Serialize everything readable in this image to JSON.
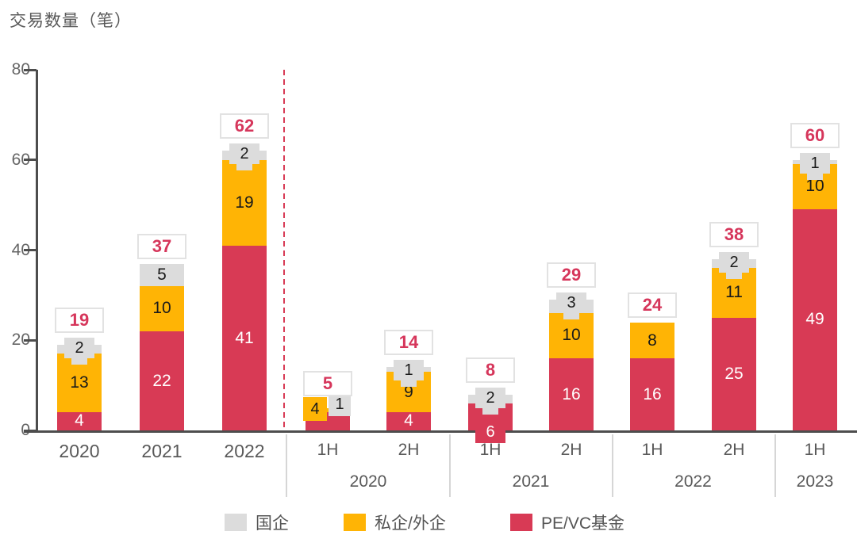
{
  "title": "交易数量（笔）",
  "colors": {
    "soe": "#dcdcdc",
    "private": "#ffb405",
    "pevc": "#d83a55",
    "axis": "#4d4d4d",
    "text_gray": "#595959",
    "total_text": "#d6365b",
    "total_border": "#e2e2e2",
    "dashed_line": "#d83a55"
  },
  "legend": [
    {
      "key": "soe",
      "label": "国企"
    },
    {
      "key": "private",
      "label": "私企/外企"
    },
    {
      "key": "pevc",
      "label": "PE/VC基金"
    }
  ],
  "chart_data": {
    "type": "bar",
    "stacked": true,
    "title": "交易数量（笔）",
    "ylabel": "交易数量（笔）",
    "ylim": [
      0,
      80
    ],
    "y_ticks": [
      0,
      20,
      40,
      60,
      80
    ],
    "series_names": {
      "soe": "国企",
      "private": "私企/外企",
      "pevc": "PE/VC基金"
    },
    "groups": [
      {
        "label": "",
        "bars": [
          {
            "label": "2020",
            "total": 19,
            "segments": [
              {
                "series": "pevc",
                "value": 4,
                "label": "4",
                "placement": "inside"
              },
              {
                "series": "private",
                "value": 13,
                "label": "13",
                "placement": "inside"
              },
              {
                "series": "soe",
                "value": 2,
                "label": "2",
                "placement": "callout-top"
              }
            ]
          },
          {
            "label": "2021",
            "total": 37,
            "segments": [
              {
                "series": "pevc",
                "value": 22,
                "label": "22",
                "placement": "inside"
              },
              {
                "series": "private",
                "value": 10,
                "label": "10",
                "placement": "inside"
              },
              {
                "series": "soe",
                "value": 5,
                "label": "5",
                "placement": "inside"
              }
            ]
          },
          {
            "label": "2022",
            "total": 62,
            "segments": [
              {
                "series": "pevc",
                "value": 41,
                "label": "41",
                "placement": "inside"
              },
              {
                "series": "private",
                "value": 19,
                "label": "19",
                "placement": "inside"
              },
              {
                "series": "soe",
                "value": 2,
                "label": "2",
                "placement": "callout-top"
              }
            ]
          }
        ]
      },
      {
        "label": "2020",
        "bars": [
          {
            "label": "1H",
            "total": 5,
            "segments": [
              {
                "series": "pevc",
                "value": 4,
                "label": "4",
                "placement": "callout-left",
                "box": "private"
              },
              {
                "series": "private",
                "value": 1,
                "label": "1",
                "placement": "callout-right",
                "box": "soe"
              }
            ]
          },
          {
            "label": "2H",
            "total": 14,
            "segments": [
              {
                "series": "pevc",
                "value": 4,
                "label": "4",
                "placement": "inside"
              },
              {
                "series": "private",
                "value": 9,
                "label": "9",
                "placement": "inside"
              },
              {
                "series": "soe",
                "value": 1,
                "label": "1",
                "placement": "callout-top"
              }
            ]
          }
        ]
      },
      {
        "label": "2021",
        "bars": [
          {
            "label": "1H",
            "total": 8,
            "segments": [
              {
                "series": "pevc",
                "value": 6,
                "label": "6",
                "placement": "callout-bottom"
              },
              {
                "series": "soe",
                "value": 2,
                "label": "2",
                "placement": "callout-top"
              }
            ]
          },
          {
            "label": "2H",
            "total": 29,
            "segments": [
              {
                "series": "pevc",
                "value": 16,
                "label": "16",
                "placement": "inside"
              },
              {
                "series": "private",
                "value": 10,
                "label": "10",
                "placement": "inside"
              },
              {
                "series": "soe",
                "value": 3,
                "label": "3",
                "placement": "callout-top"
              }
            ]
          }
        ]
      },
      {
        "label": "2022",
        "bars": [
          {
            "label": "1H",
            "total": 24,
            "segments": [
              {
                "series": "pevc",
                "value": 16,
                "label": "16",
                "placement": "inside"
              },
              {
                "series": "private",
                "value": 8,
                "label": "8",
                "placement": "inside"
              }
            ]
          },
          {
            "label": "2H",
            "total": 38,
            "segments": [
              {
                "series": "pevc",
                "value": 25,
                "label": "25",
                "placement": "inside"
              },
              {
                "series": "private",
                "value": 11,
                "label": "11",
                "placement": "inside"
              },
              {
                "series": "soe",
                "value": 2,
                "label": "2",
                "placement": "callout-top"
              }
            ]
          }
        ]
      },
      {
        "label": "2023",
        "bars": [
          {
            "label": "1H",
            "total": 60,
            "segments": [
              {
                "series": "pevc",
                "value": 49,
                "label": "49",
                "placement": "inside"
              },
              {
                "series": "private",
                "value": 10,
                "label": "10",
                "placement": "inside"
              },
              {
                "series": "soe",
                "value": 1,
                "label": "1",
                "placement": "callout-top"
              }
            ]
          }
        ]
      }
    ]
  }
}
